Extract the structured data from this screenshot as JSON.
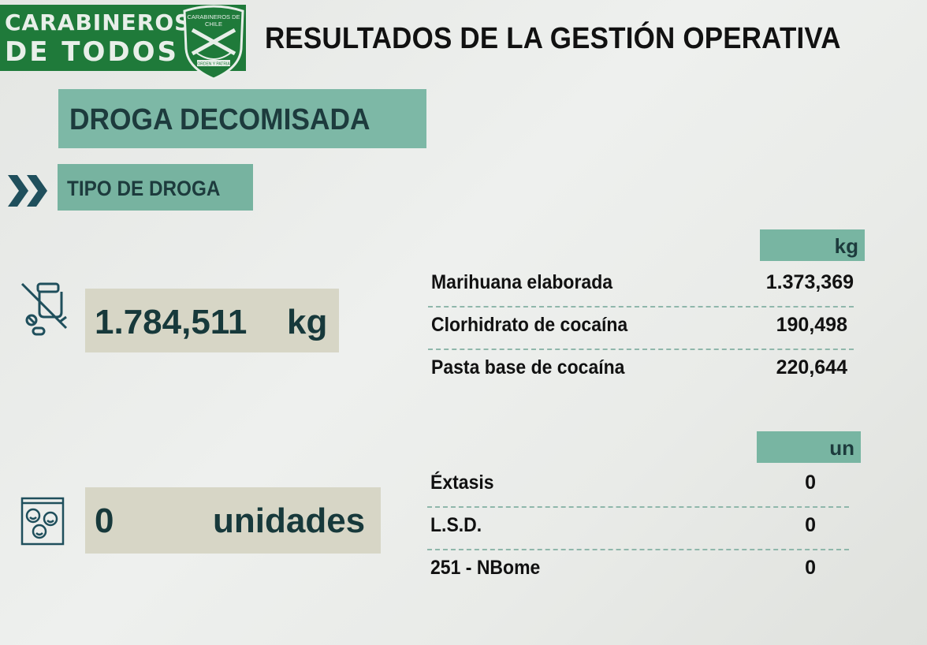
{
  "logo": {
    "line1": "CARABINEROS",
    "line2": "DE TODOS",
    "emblem_top": "CARABINEROS DE CHILE",
    "emblem_motto": "ORDEN Y PATRIA",
    "brand_color": "#1f7a3a"
  },
  "header": {
    "title": "RESULTADOS DE LA GESTIÓN OPERATIVA"
  },
  "section": {
    "title": "DROGA DECOMISADA",
    "subtitle": "TIPO DE DROGA",
    "icon": "double-chevron-right-icon",
    "accent_color": "#7db8a6"
  },
  "weight": {
    "icon": "syringe-pills-icon",
    "total_value": "1.784,511",
    "total_unit": "kg",
    "table_unit": "kg",
    "rows": [
      {
        "label": "Marihuana elaborada",
        "value": "1.373,369"
      },
      {
        "label": "Clorhidrato de cocaína",
        "value": "190,498"
      },
      {
        "label": "Pasta base de cocaína",
        "value": "220,644"
      }
    ]
  },
  "units": {
    "icon": "pill-bag-icon",
    "total_value": "0",
    "total_unit": "unidades",
    "table_unit": "un",
    "rows": [
      {
        "label": "Éxtasis",
        "value": "0"
      },
      {
        "label": "L.S.D.",
        "value": "0"
      },
      {
        "label": "251 - NBome",
        "value": "0"
      }
    ]
  }
}
